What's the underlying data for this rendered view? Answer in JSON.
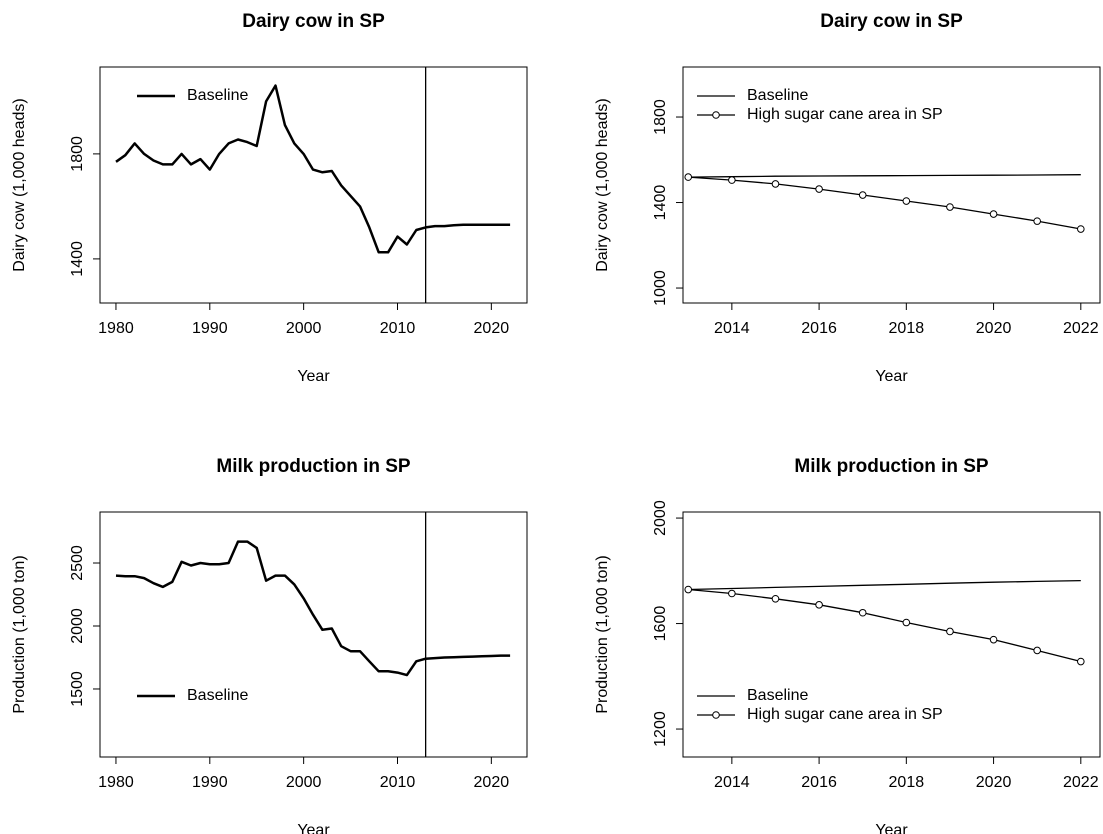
{
  "chart_data": [
    {
      "type": "line",
      "title": "Dairy cow in SP",
      "xlabel": "Year",
      "ylabel": "Dairy cow (1,000 heads)",
      "x": [
        1980,
        1981,
        1982,
        1983,
        1984,
        1985,
        1986,
        1987,
        1988,
        1989,
        1990,
        1991,
        1992,
        1993,
        1994,
        1995,
        1996,
        1997,
        1998,
        1999,
        2000,
        2001,
        2002,
        2003,
        2004,
        2005,
        2006,
        2007,
        2008,
        2009,
        2010,
        2011,
        2012,
        2013,
        2014,
        2015,
        2016,
        2017,
        2018,
        2019,
        2020,
        2021,
        2022
      ],
      "series": [
        {
          "name": "Baseline",
          "color": "#000000",
          "width": 2.5,
          "values": [
            1770,
            1795,
            1840,
            1800,
            1775,
            1760,
            1760,
            1800,
            1760,
            1780,
            1740,
            1800,
            1840,
            1855,
            1845,
            1830,
            2000,
            2060,
            1910,
            1840,
            1800,
            1740,
            1730,
            1735,
            1680,
            1640,
            1600,
            1520,
            1425,
            1425,
            1485,
            1455,
            1510,
            1520,
            1525,
            1525,
            1528,
            1530,
            1530,
            1530,
            1530,
            1530,
            1530
          ]
        }
      ],
      "xlim": [
        1978.3,
        2023.8
      ],
      "ylim": [
        1232,
        2131
      ],
      "xticks": [
        1980,
        1990,
        2000,
        2010,
        2020
      ],
      "yticks": [
        1400,
        1800
      ],
      "vline": 2013,
      "legend": "topleft"
    },
    {
      "type": "line",
      "title": "Dairy cow in SP",
      "xlabel": "Year",
      "ylabel": "Dairy cow (1,000 heads)",
      "x": [
        2013,
        2014,
        2015,
        2016,
        2017,
        2018,
        2019,
        2020,
        2021,
        2022
      ],
      "series": [
        {
          "name": "Baseline",
          "color": "#000000",
          "width": 1.3,
          "values": [
            1519,
            1521,
            1523,
            1524,
            1525,
            1526,
            1527,
            1528,
            1529,
            1530
          ]
        },
        {
          "name": "High sugar cane area in SP",
          "color": "#000000",
          "width": 1.3,
          "marker": "circle",
          "values": [
            1519,
            1505,
            1487,
            1463,
            1435,
            1407,
            1379,
            1346,
            1313,
            1276
          ]
        }
      ],
      "xlim": [
        2012.88,
        2022.44
      ],
      "ylim": [
        930,
        2034
      ],
      "xticks": [
        2014,
        2016,
        2018,
        2020,
        2022
      ],
      "yticks": [
        1000,
        1400,
        1800
      ],
      "legend": "topleft"
    },
    {
      "type": "line",
      "title": "Milk production in SP",
      "xlabel": "Year",
      "ylabel": "Production (1,000 ton)",
      "x": [
        1980,
        1981,
        1982,
        1983,
        1984,
        1985,
        1986,
        1987,
        1988,
        1989,
        1990,
        1991,
        1992,
        1993,
        1994,
        1995,
        1996,
        1997,
        1998,
        1999,
        2000,
        2001,
        2002,
        2003,
        2004,
        2005,
        2006,
        2007,
        2008,
        2009,
        2010,
        2011,
        2012,
        2013,
        2014,
        2015,
        2016,
        2017,
        2018,
        2019,
        2020,
        2021,
        2022
      ],
      "series": [
        {
          "name": "Baseline",
          "color": "#000000",
          "width": 2.5,
          "values": [
            2400,
            2395,
            2395,
            2380,
            2340,
            2310,
            2350,
            2510,
            2480,
            2500,
            2490,
            2490,
            2500,
            2670,
            2670,
            2620,
            2360,
            2400,
            2400,
            2330,
            2220,
            2090,
            1970,
            1980,
            1840,
            1800,
            1800,
            1720,
            1640,
            1640,
            1630,
            1610,
            1720,
            1740,
            1745,
            1750,
            1752,
            1755,
            1757,
            1760,
            1762,
            1765,
            1765
          ]
        }
      ],
      "xlim": [
        1978.3,
        2023.8
      ],
      "ylim": [
        960,
        2905
      ],
      "xticks": [
        1980,
        1990,
        2000,
        2010,
        2020
      ],
      "yticks": [
        1500,
        2000,
        2500
      ],
      "vline": 2013,
      "legend": "bottomleft"
    },
    {
      "type": "line",
      "title": "Milk production in SP",
      "xlabel": "Year",
      "ylabel": "Production (1,000 ton)",
      "x": [
        2013,
        2014,
        2015,
        2016,
        2017,
        2018,
        2019,
        2020,
        2021,
        2022
      ],
      "series": [
        {
          "name": "Baseline",
          "color": "#000000",
          "width": 1.3,
          "values": [
            1729,
            1733,
            1737,
            1741,
            1745,
            1749,
            1753,
            1757,
            1760,
            1763
          ]
        },
        {
          "name": "High sugar cane area in SP",
          "color": "#000000",
          "width": 1.3,
          "marker": "circle",
          "values": [
            1729,
            1714,
            1694,
            1671,
            1641,
            1604,
            1570,
            1539,
            1498,
            1456
          ]
        }
      ],
      "xlim": [
        2012.88,
        2022.44
      ],
      "ylim": [
        1094,
        2023
      ],
      "xticks": [
        2014,
        2016,
        2018,
        2020,
        2022
      ],
      "yticks": [
        1200,
        1600,
        2000
      ],
      "legend": "bottomleft"
    }
  ]
}
